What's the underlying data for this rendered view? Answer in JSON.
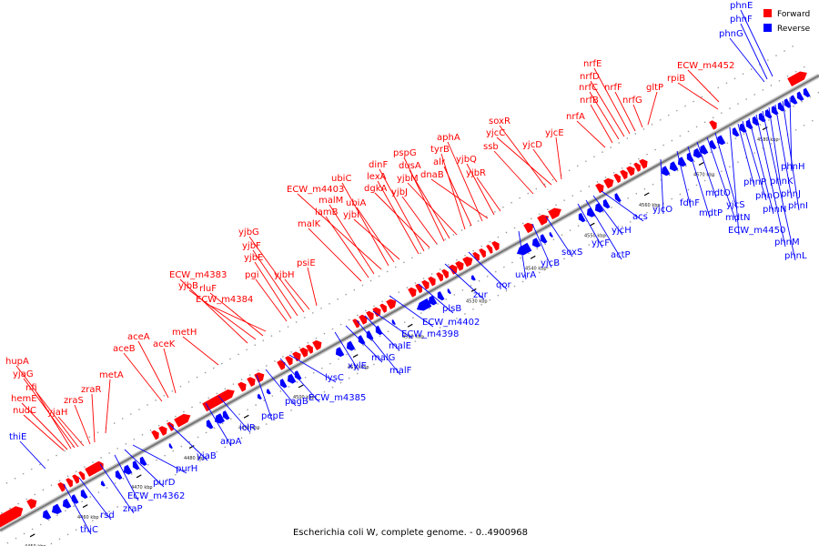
{
  "caption": "Escherichia coli W, complete genome. - 0..4900968",
  "legend": [
    {
      "label": "Forward",
      "color": "#ff0000"
    },
    {
      "label": "Reverse",
      "color": "#0000ff"
    }
  ],
  "colors": {
    "forward": "#ff0000",
    "reverse": "#0000ff",
    "backbone": "#888888",
    "dot": "#999999"
  },
  "ticks": [
    "4450 kbp",
    "4460 kbp",
    "4470 kbp",
    "4480 kbp",
    "4490 kbp",
    "4500 kbp",
    "4510 kbp",
    "4520 kbp",
    "4530 kbp",
    "4540 kbp",
    "4550 kbp",
    "4560 kbp",
    "4570 kbp",
    "4580 kbp"
  ],
  "forward_genes": [
    "nudC",
    "hemE",
    "nfi",
    "yjaG",
    "hupA",
    "yjaH",
    "zraS",
    "zraR",
    "metA",
    "aceB",
    "aceA",
    "aceK",
    "metH",
    "ECW_m4383",
    "yjbB",
    "rluF",
    "ECW_m4384",
    "pgi",
    "yjbE",
    "yjbF",
    "yjbG",
    "yjbH",
    "psiE",
    "malK",
    "lamB",
    "malM",
    "ECW_m4403",
    "ubiC",
    "ubiA",
    "yjbI",
    "lexA",
    "dinF",
    "dgkA",
    "yjbJ",
    "pspG",
    "dusA",
    "yjbM",
    "tyrB",
    "alr",
    "aphA",
    "dnaB",
    "yjbQ",
    "yjbR",
    "ssb",
    "soxR",
    "yjcC",
    "yjcD",
    "yjcE",
    "nrfA",
    "nrfB",
    "nrfC",
    "nrfD",
    "nrfE",
    "nrfF",
    "nrfG",
    "gltP",
    "rpiB",
    "ECW_m4452"
  ],
  "reverse_genes": [
    "thiE",
    "thiC",
    "rsd",
    "zraP",
    "ECW_m4362",
    "purD",
    "purH",
    "yjaB",
    "arpA",
    "iclR",
    "pepE",
    "pagB",
    "ECW_m4385",
    "lysC",
    "xylE",
    "malG",
    "malF",
    "malE",
    "ECW_m4398",
    "ECW_m4402",
    "plsB",
    "zur",
    "qor",
    "uvrA",
    "yjcB",
    "soxS",
    "yjcF",
    "actP",
    "yjcH",
    "acs",
    "yjcO",
    "fdhF",
    "mdtP",
    "mdtO",
    "mdtN",
    "yjcS",
    "ECW_m4450",
    "phnP",
    "phnO",
    "phnN",
    "phnM",
    "phnL",
    "phnK",
    "phnJ",
    "phnI",
    "phnH",
    "phnG",
    "phnF",
    "phnE"
  ]
}
